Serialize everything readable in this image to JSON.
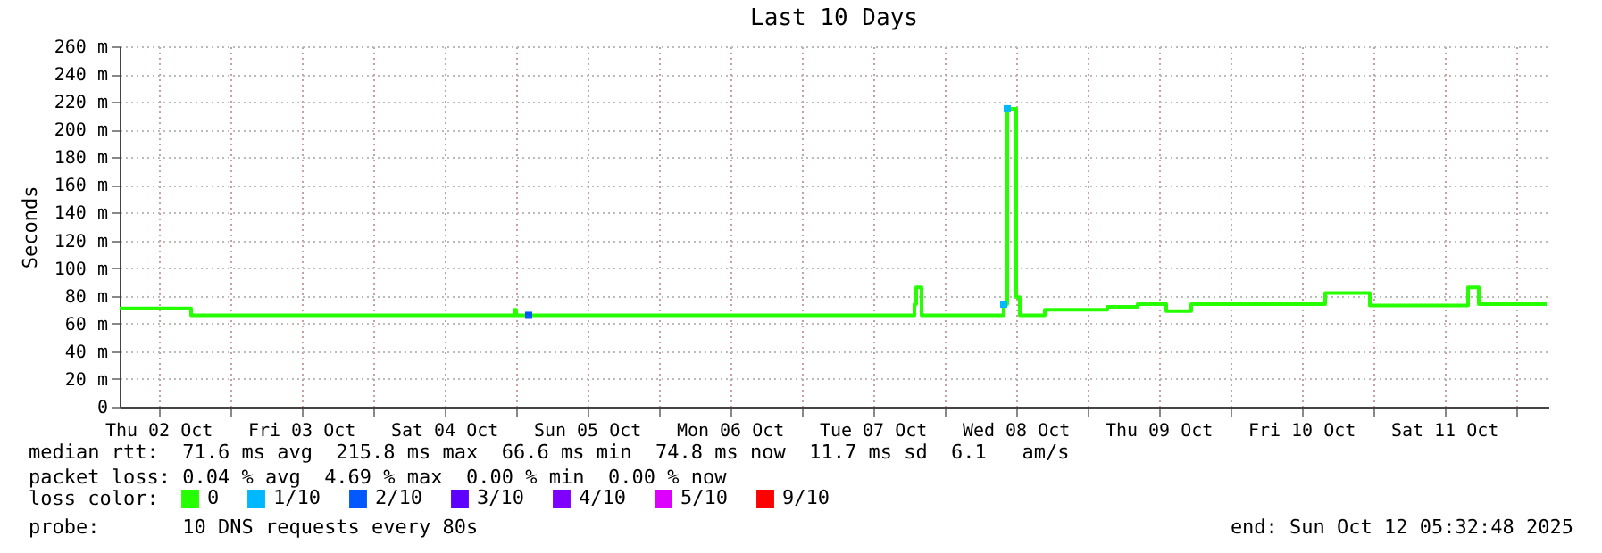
{
  "chart_data": {
    "type": "step",
    "title": "Last 10 Days",
    "ylabel": "Seconds",
    "legend_title": "loss color:",
    "xlim": [
      "2025-10-02T05:32",
      "2025-10-12T05:32"
    ],
    "xticks": [
      {
        "value": "2025-10-02T12:00",
        "label": "Thu 02 Oct"
      },
      {
        "value": "2025-10-03T00:00",
        "label": null
      },
      {
        "value": "2025-10-03T12:00",
        "label": "Fri 03 Oct"
      },
      {
        "value": "2025-10-04T00:00",
        "label": null
      },
      {
        "value": "2025-10-04T12:00",
        "label": "Sat 04 Oct"
      },
      {
        "value": "2025-10-05T00:00",
        "label": null
      },
      {
        "value": "2025-10-05T12:00",
        "label": "Sun 05 Oct"
      },
      {
        "value": "2025-10-06T00:00",
        "label": null
      },
      {
        "value": "2025-10-06T12:00",
        "label": "Mon 06 Oct"
      },
      {
        "value": "2025-10-07T00:00",
        "label": null
      },
      {
        "value": "2025-10-07T12:00",
        "label": "Tue 07 Oct"
      },
      {
        "value": "2025-10-08T00:00",
        "label": null
      },
      {
        "value": "2025-10-08T12:00",
        "label": "Wed 08 Oct"
      },
      {
        "value": "2025-10-09T00:00",
        "label": null
      },
      {
        "value": "2025-10-09T12:00",
        "label": "Thu 09 Oct"
      },
      {
        "value": "2025-10-10T00:00",
        "label": null
      },
      {
        "value": "2025-10-10T12:00",
        "label": "Fri 10 Oct"
      },
      {
        "value": "2025-10-11T00:00",
        "label": null
      },
      {
        "value": "2025-10-11T12:00",
        "label": "Sat 11 Oct"
      },
      {
        "value": "2025-10-12T00:00",
        "label": null
      }
    ],
    "ylim": [
      0,
      260
    ],
    "yticks": [
      0,
      {
        "value": 20,
        "label": "20 m"
      },
      {
        "value": 40,
        "label": "40 m"
      },
      {
        "value": 60,
        "label": "60 m"
      },
      {
        "value": 80,
        "label": "80 m"
      },
      {
        "value": 100,
        "label": "100 m"
      },
      {
        "value": 120,
        "label": "120 m"
      },
      {
        "value": 140,
        "label": "140 m"
      },
      {
        "value": 160,
        "label": "160 m"
      },
      {
        "value": 180,
        "label": "180 m"
      },
      {
        "value": 200,
        "label": "200 m"
      },
      {
        "value": 220,
        "label": "220 m"
      },
      {
        "value": 240,
        "label": "240 m"
      },
      {
        "value": 260,
        "label": "260 m"
      }
    ],
    "grid": true,
    "legend": "bottom",
    "series": [
      {
        "name": "0",
        "color": "#26ff00",
        "x": [
          "2025-10-02T05:32",
          "2025-10-02T17:32",
          "2025-10-04T23:50",
          "2025-10-05T00:08",
          "2025-10-07T19:02",
          "2025-10-07T19:20",
          "2025-10-07T20:14",
          "2025-10-08T10:02",
          "2025-10-08T10:38",
          "2025-10-08T12:08",
          "2025-10-08T12:44",
          "2025-10-08T16:56",
          "2025-10-09T03:26",
          "2025-10-09T08:32",
          "2025-10-09T13:20",
          "2025-10-09T17:32",
          "2025-10-10T16:02",
          "2025-10-10T23:32",
          "2025-10-11T16:02",
          "2025-10-11T17:50",
          "2025-10-12T05:14"
        ],
        "values": [
          71,
          66,
          70,
          66,
          74,
          86,
          66,
          74,
          215,
          79,
          66,
          70,
          72,
          74,
          69,
          74,
          82,
          73,
          86,
          74,
          74
        ]
      },
      {
        "name": "1/10",
        "color": "#00b8ff",
        "type": "scatter",
        "x": [
          "2025-10-08T10:02",
          "2025-10-08T10:38"
        ],
        "values": [
          74,
          215
        ]
      },
      {
        "name": "2/10",
        "color": "#0059ff",
        "type": "scatter",
        "x": [
          "2025-10-05T02:14"
        ],
        "values": [
          66
        ]
      },
      {
        "name": "3/10",
        "color": "#5e00ff",
        "type": "scatter"
      },
      {
        "name": "4/10",
        "color": "#7e00ff",
        "type": "scatter"
      },
      {
        "name": "5/10",
        "color": "#dd00ff",
        "type": "scatter"
      },
      {
        "name": "9/10",
        "color": "#ff0000",
        "type": "scatter"
      }
    ],
    "annotations": [
      "median rtt:  71.6 ms avg  215.8 ms max  66.6 ms min  74.8 ms now  11.7 ms sd  6.1   am/s",
      "packet loss: 0.04 % avg  4.69 % max  0.00 % min  0.00 % now",
      "probe:       10 DNS requests every 80s",
      "end: Sun Oct 12 05:32:48 2025"
    ]
  }
}
